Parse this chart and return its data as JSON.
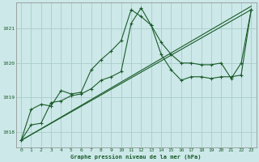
{
  "title": "Graphe pression niveau de la mer (hPa)",
  "bg_color": "#cce8e8",
  "grid_color": "#aacccc",
  "line_color": "#1a5c2a",
  "xlim": [
    -0.5,
    23.5
  ],
  "ylim": [
    1017.55,
    1021.75
  ],
  "yticks": [
    1018,
    1019,
    1020,
    1021
  ],
  "xticks": [
    0,
    1,
    2,
    3,
    4,
    5,
    6,
    7,
    8,
    9,
    10,
    11,
    12,
    13,
    14,
    15,
    16,
    17,
    18,
    19,
    20,
    21,
    22,
    23
  ],
  "line1_x": [
    0,
    1,
    2,
    3,
    4,
    5,
    6,
    7,
    8,
    9,
    10,
    11,
    12,
    13,
    14,
    15,
    16,
    17,
    18,
    19,
    20,
    21,
    22,
    23
  ],
  "line1_y": [
    1017.75,
    1018.65,
    1018.8,
    1018.75,
    1019.2,
    1019.1,
    1019.15,
    1019.8,
    1020.1,
    1020.35,
    1020.65,
    1021.55,
    1021.35,
    1021.1,
    1020.6,
    1020.25,
    1020.0,
    1020.0,
    1019.95,
    1019.95,
    1020.0,
    1019.55,
    1020.0,
    1021.55
  ],
  "line2_x": [
    0,
    1,
    2,
    3,
    4,
    5,
    6,
    7,
    8,
    9,
    10,
    11,
    12,
    13,
    14,
    15,
    16,
    17,
    18,
    19,
    20,
    21,
    22,
    23
  ],
  "line2_y": [
    1017.75,
    1018.2,
    1018.25,
    1018.85,
    1018.9,
    1019.05,
    1019.1,
    1019.25,
    1019.5,
    1019.6,
    1019.75,
    1021.15,
    1021.6,
    1021.1,
    1020.25,
    1019.8,
    1019.5,
    1019.6,
    1019.6,
    1019.55,
    1019.6,
    1019.6,
    1019.65,
    1021.55
  ],
  "line3_x": [
    0,
    23
  ],
  "line3_y": [
    1017.75,
    1021.55
  ],
  "line4_x": [
    0,
    23
  ],
  "line4_y": [
    1017.75,
    1021.65
  ]
}
